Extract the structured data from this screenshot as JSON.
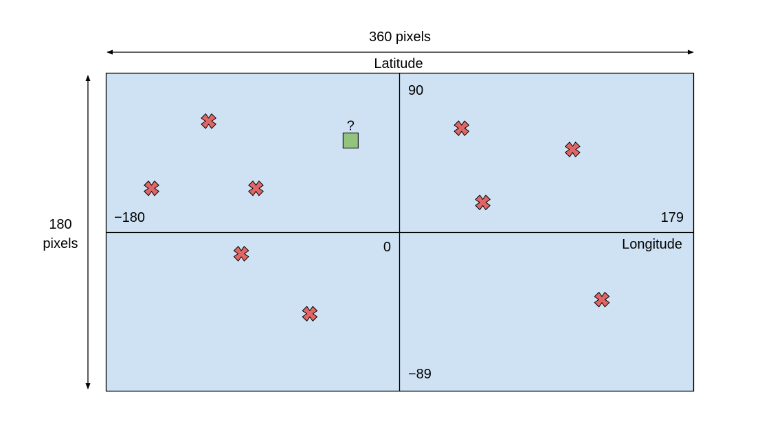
{
  "width_label": "360 pixels",
  "height_label": [
    "180",
    "pixels"
  ],
  "lat_label": "Latitude",
  "lon_label": "Longitude",
  "ticks": {
    "lat_top": "90",
    "lat_bottom": "−89",
    "lon_left": "−180",
    "lon_right": "179",
    "origin": "0"
  },
  "query_label": "?",
  "colors": {
    "grid_fill": "#cfe2f3",
    "marker": "#e06666",
    "query_fill": "#93c47d"
  },
  "markers": [
    {
      "lon": -117,
      "lat": 63
    },
    {
      "lon": -152,
      "lat": 25
    },
    {
      "lon": -88,
      "lat": 25
    },
    {
      "lon": 38,
      "lat": 59
    },
    {
      "lon": 106,
      "lat": 47
    },
    {
      "lon": 51,
      "lat": 17
    },
    {
      "lon": -97,
      "lat": -12
    },
    {
      "lon": -55,
      "lat": -46
    },
    {
      "lon": 124,
      "lat": -38
    }
  ],
  "query_point": {
    "lon": -30,
    "lat": 52
  }
}
